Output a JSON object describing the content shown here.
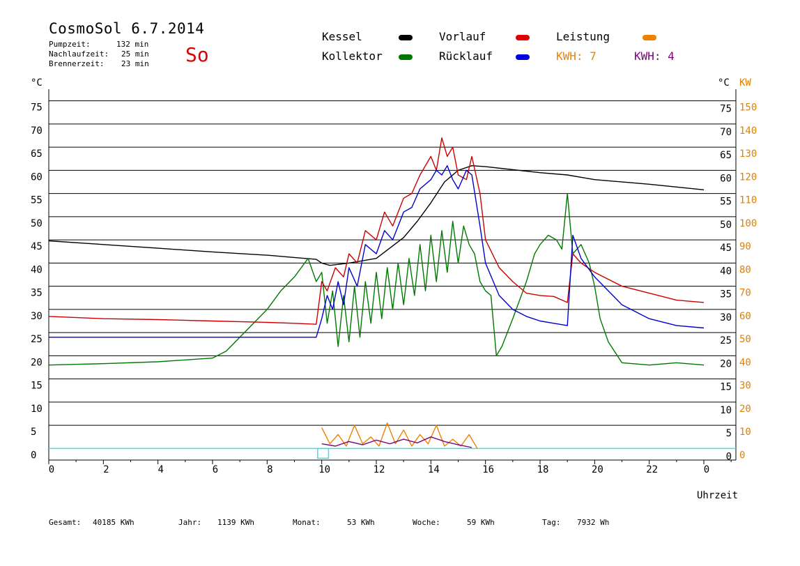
{
  "header": {
    "title": "CosmoSol 6.7.2014",
    "day": "So",
    "pumpzeit_label": "Pumpzeit:",
    "pumpzeit_value": "132 min",
    "nachlaufzeit_label": "Nachlaufzeit:",
    "nachlaufzeit_value": "25 min",
    "brennerzeit_label": "Brennerzeit:",
    "brennerzeit_value": "23 min"
  },
  "legend": {
    "kessel": "Kessel",
    "kollektor": "Kollektor",
    "vorlauf": "Vorlauf",
    "ruecklauf": "Rücklauf",
    "leistung": "Leistung",
    "kwh1": "KWH: 7",
    "kwh2": "KWH: 4"
  },
  "colors": {
    "kessel": "#000000",
    "kollektor": "#007800",
    "vorlauf": "#cc0000",
    "ruecklauf": "#0000cc",
    "leistung": "#f08000",
    "kwh2": "#800080",
    "baseline": "#40e0e0",
    "kw_axis": "#e08000"
  },
  "footer": {
    "gesamt_label": "Gesamt:",
    "gesamt_value": "40185 KWh",
    "jahr_label": "Jahr:",
    "jahr_value": "1139 KWh",
    "monat_label": "Monat:",
    "monat_value": "53 KWh",
    "woche_label": "Woche:",
    "woche_value": "59 KWh",
    "tag_label": "Tag:",
    "tag_value": "7932 Wh"
  },
  "chart_data": {
    "type": "line",
    "title": "CosmoSol 6.7.2014",
    "xlabel": "Uhrzeit",
    "ylabel_left": "°C",
    "ylabel_right": "°C",
    "ylabel_right2": "KW",
    "xlim": [
      0,
      24
    ],
    "ylim": [
      -2.5,
      77.5
    ],
    "x_ticks": [
      "0",
      "2",
      "4",
      "6",
      "8",
      "10",
      "12",
      "14",
      "16",
      "18",
      "20",
      "22",
      "0"
    ],
    "y_ticks": [
      0,
      5,
      10,
      15,
      20,
      25,
      30,
      35,
      40,
      45,
      50,
      55,
      60,
      65,
      70,
      75
    ],
    "kw_ticks": [
      "0",
      "10",
      "20",
      "30",
      "40",
      "50",
      "60",
      "70",
      "80",
      "90",
      "100",
      "110",
      "120",
      "130",
      "140",
      "150"
    ],
    "grid": true,
    "series": [
      {
        "name": "Kessel",
        "color": "#000000",
        "x": [
          0,
          2,
          4,
          6,
          8,
          9,
          9.8,
          10,
          10.3,
          11,
          12,
          13,
          13.5,
          14,
          14.5,
          15,
          15.5,
          16,
          18,
          19,
          20,
          22,
          24
        ],
        "y": [
          44.8,
          44,
          43.2,
          42.4,
          41.7,
          41.2,
          40.8,
          40,
          39.5,
          40,
          41,
          45.5,
          49,
          53,
          57.5,
          60,
          61,
          60.8,
          59.5,
          59,
          58,
          57,
          55.8
        ]
      },
      {
        "name": "Kollektor",
        "color": "#007800",
        "x": [
          0,
          2,
          4,
          6,
          6.5,
          7,
          7.5,
          8,
          8.5,
          9,
          9.5,
          9.8,
          10,
          10.2,
          10.4,
          10.6,
          10.8,
          11,
          11.2,
          11.4,
          11.6,
          11.8,
          12,
          12.2,
          12.4,
          12.6,
          12.8,
          13,
          13.2,
          13.4,
          13.6,
          13.8,
          14,
          14.2,
          14.4,
          14.6,
          14.8,
          15,
          15.2,
          15.4,
          15.6,
          15.8,
          16,
          16.2,
          16.4,
          16.6,
          17,
          17.5,
          17.8,
          18,
          18.3,
          18.6,
          18.8,
          19,
          19.2,
          19.5,
          19.8,
          20,
          20.2,
          20.5,
          21,
          22,
          23,
          24
        ],
        "y": [
          18,
          18.3,
          18.7,
          19.5,
          21,
          24,
          27,
          30,
          34,
          37,
          41,
          36,
          38,
          27,
          34,
          22,
          33,
          23,
          35,
          24,
          36,
          27,
          38,
          28,
          39,
          30,
          40,
          31,
          41,
          33,
          44,
          34,
          46,
          36,
          47,
          38,
          49,
          40,
          48,
          44,
          42,
          36,
          34,
          33,
          20,
          22,
          28,
          36,
          42,
          44,
          46,
          45,
          43,
          55,
          42,
          44,
          40,
          35,
          28,
          23,
          18.5,
          18,
          18.5,
          18
        ]
      },
      {
        "name": "Vorlauf",
        "color": "#cc0000",
        "x": [
          0,
          2,
          4,
          6,
          8,
          9,
          9.8,
          10,
          10.2,
          10.5,
          10.8,
          11,
          11.3,
          11.6,
          12,
          12.3,
          12.6,
          13,
          13.3,
          13.6,
          14,
          14.2,
          14.4,
          14.6,
          14.8,
          15,
          15.3,
          15.5,
          15.8,
          16,
          16.5,
          17,
          17.5,
          18,
          18.5,
          19,
          19.2,
          19.5,
          20,
          21,
          22,
          23,
          24
        ],
        "y": [
          28.5,
          28,
          27.8,
          27.5,
          27.2,
          27,
          26.8,
          36,
          34,
          39,
          37,
          42,
          40,
          47,
          45,
          51,
          48,
          54,
          55,
          59,
          63,
          60,
          67,
          63,
          65,
          59,
          58,
          63,
          55,
          45,
          39,
          36,
          33.5,
          33,
          32.8,
          31.5,
          42,
          40,
          38,
          35,
          33.5,
          32,
          31.5
        ]
      },
      {
        "name": "Rücklauf",
        "color": "#0000cc",
        "x": [
          0,
          2,
          4,
          6,
          8,
          9,
          9.8,
          10,
          10.2,
          10.4,
          10.6,
          10.8,
          11,
          11.3,
          11.6,
          12,
          12.3,
          12.6,
          13,
          13.3,
          13.6,
          14,
          14.2,
          14.4,
          14.6,
          14.8,
          15,
          15.3,
          15.5,
          15.8,
          16,
          16.5,
          17,
          17.5,
          18,
          18.5,
          19,
          19.2,
          19.5,
          20,
          21,
          22,
          23,
          24
        ],
        "y": [
          24,
          24,
          24,
          24,
          24,
          24,
          24,
          28,
          33,
          30,
          36,
          31,
          39,
          35,
          44,
          42,
          47,
          45,
          51,
          52,
          56,
          58,
          60,
          59,
          61,
          58,
          56,
          60,
          59,
          48,
          40,
          33,
          30,
          28.5,
          27.5,
          27,
          26.5,
          46,
          41,
          37,
          31,
          28,
          26.5,
          26
        ]
      },
      {
        "name": "Leistung",
        "color": "#f08000",
        "x": [
          10,
          10.3,
          10.6,
          10.9,
          11.2,
          11.5,
          11.8,
          12.1,
          12.4,
          12.7,
          13,
          13.3,
          13.6,
          13.9,
          14.2,
          14.5,
          14.8,
          15.1,
          15.4,
          15.7
        ],
        "y": [
          4.5,
          1,
          3,
          0.5,
          5,
          1,
          2.5,
          0.5,
          5.5,
          1,
          4,
          0.5,
          3,
          1,
          5,
          0.5,
          2,
          0.5,
          3,
          0
        ]
      },
      {
        "name": "KWH",
        "color": "#800080",
        "x": [
          10,
          10.5,
          11,
          11.5,
          12,
          12.5,
          13,
          13.5,
          14,
          14.5,
          15,
          15.5
        ],
        "y": [
          1,
          0.5,
          1.5,
          0.8,
          1.8,
          1,
          2,
          1.2,
          2.5,
          1.5,
          0.8,
          0.2
        ]
      }
    ]
  }
}
